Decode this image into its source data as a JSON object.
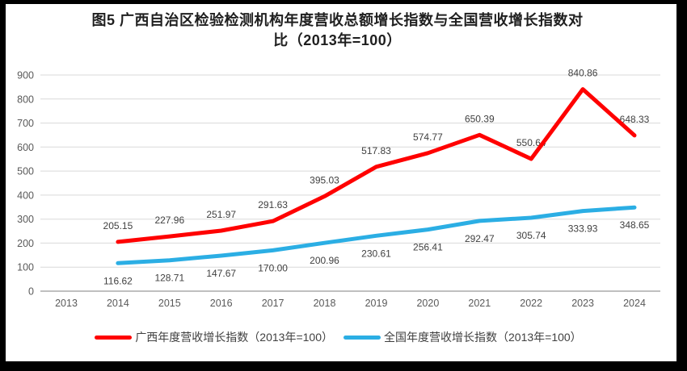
{
  "figure": {
    "title_line1": "图5  广西自治区检验检测机构年度营收总额增长指数与全国营收增长指数对",
    "title_line2": "比（2013年=100）"
  },
  "chart_data": {
    "type": "line",
    "title": "图5 广西自治区检验检测机构年度营收总额增长指数与全国营收增长指数对比（2013年=100）",
    "categories": [
      "2013",
      "2014",
      "2015",
      "2016",
      "2017",
      "2018",
      "2019",
      "2020",
      "2021",
      "2022",
      "2023",
      "2024"
    ],
    "xlabel": "",
    "ylabel": "",
    "ylim": [
      0,
      900
    ],
    "y_ticks": [
      0,
      100,
      200,
      300,
      400,
      500,
      600,
      700,
      800,
      900
    ],
    "grid": true,
    "legend_position": "bottom",
    "colors": {
      "gridline": "#D9D9D9",
      "axis_line": "#BFBFBF",
      "tick_label": "#595959",
      "data_label": "#404040",
      "frame": "#000000",
      "background": "#FFFFFF"
    },
    "series": [
      {
        "name": "广西年度营收增长指数（2013年=100）",
        "color": "#FF0000",
        "label_position": "above",
        "values": [
          null,
          205.15,
          227.96,
          251.97,
          291.63,
          395.03,
          517.83,
          574.77,
          650.39,
          550.64,
          840.86,
          648.33
        ],
        "labels": [
          "",
          "205.15",
          "227.96",
          "251.97",
          "291.63",
          "395.03",
          "517.83",
          "574.77",
          "650.39",
          "550.64",
          "840.86",
          "648.33"
        ]
      },
      {
        "name": "全国年度营收增长指数（2013年=100）",
        "color": "#2BAEE4",
        "label_position": "below",
        "values": [
          null,
          116.62,
          128.71,
          147.67,
          170.0,
          200.96,
          230.61,
          256.41,
          292.47,
          305.74,
          333.93,
          348.65
        ],
        "labels": [
          "",
          "116.62",
          "128.71",
          "147.67",
          "170.00",
          "200.96",
          "230.61",
          "256.41",
          "292.47",
          "305.74",
          "333.93",
          "348.65"
        ]
      }
    ]
  }
}
